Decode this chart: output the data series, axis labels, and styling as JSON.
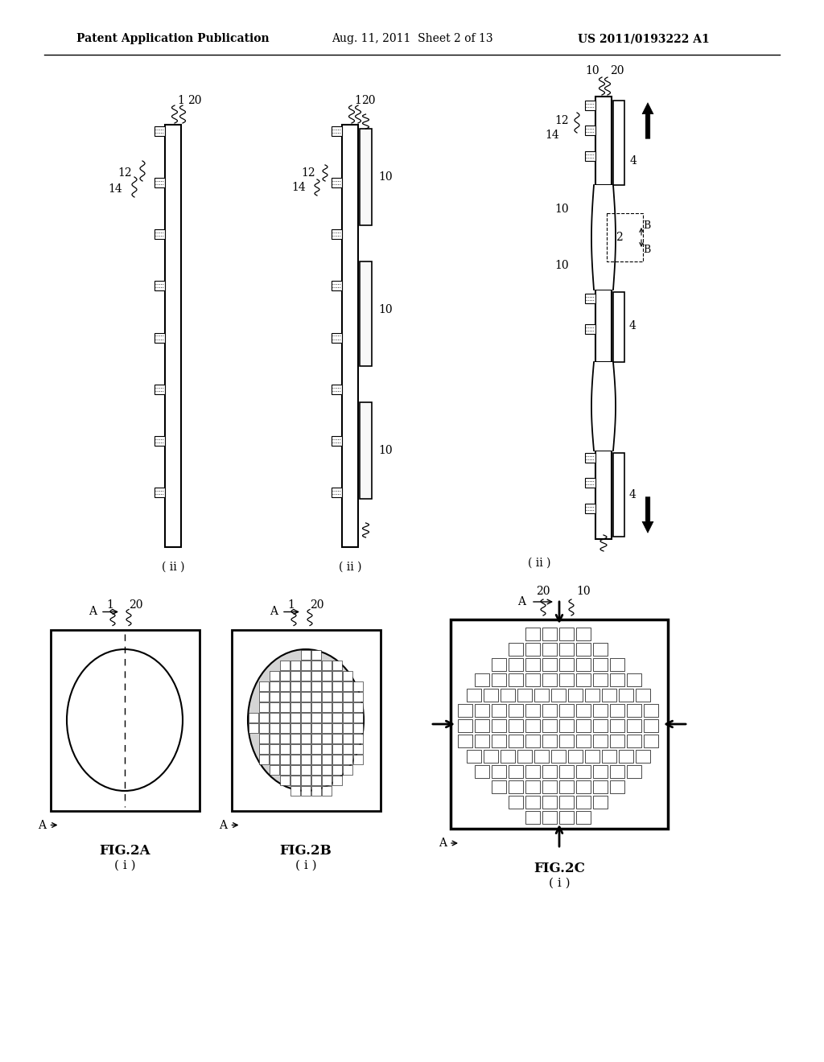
{
  "bg_color": "#ffffff",
  "text_color": "#000000",
  "header_left": "Patent Application Publication",
  "header_mid": "Aug. 11, 2011  Sheet 2 of 13",
  "header_right": "US 2011/0193222 A1"
}
